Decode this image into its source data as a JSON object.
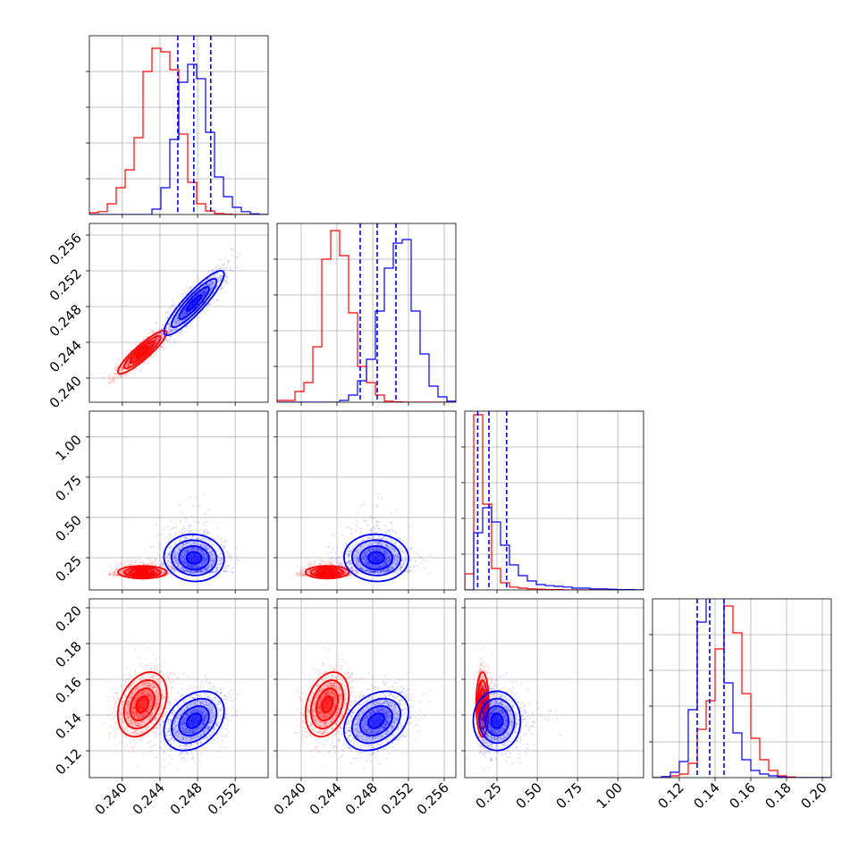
{
  "chart_data": {
    "type": "corner",
    "series_colors": [
      "#ff0000",
      "#0000ff"
    ],
    "dims": [
      {
        "range": [
          0.2365,
          0.2555
        ],
        "ticks": [
          0.24,
          0.244,
          0.248,
          0.252
        ],
        "labels": [
          "0.240",
          "0.244",
          "0.248",
          "0.252"
        ]
      },
      {
        "range": [
          0.2373,
          0.2573
        ],
        "ticks": [
          0.24,
          0.244,
          0.248,
          0.252,
          0.256
        ],
        "labels": [
          "0.240",
          "0.244",
          "0.248",
          "0.252",
          "0.256"
        ]
      },
      {
        "range": [
          0.05,
          1.16
        ],
        "ticks": [
          0.25,
          0.5,
          0.75,
          1.0
        ],
        "labels": [
          "0.25",
          "0.50",
          "0.75",
          "1.00"
        ]
      },
      {
        "range": [
          0.105,
          0.205
        ],
        "ticks": [
          0.12,
          0.14,
          0.16,
          0.18,
          0.2
        ],
        "labels": [
          "0.12",
          "0.14",
          "0.16",
          "0.18",
          "0.20"
        ]
      }
    ],
    "hist": [
      {
        "red": [
          0.5,
          0.8,
          3.0,
          7.5,
          12.5,
          21.5,
          40.0,
          46.5,
          45.5,
          40.5,
          22.5,
          9.0,
          3.0,
          1.0,
          0.3,
          0.1,
          0.0,
          0.0,
          0.0,
          0.0
        ],
        "blue": [
          0.0,
          0.0,
          0.0,
          0.0,
          0.0,
          0.0,
          0.0,
          1.5,
          7.5,
          21.0,
          37.0,
          42.0,
          38.0,
          23.0,
          10.5,
          5.0,
          2.0,
          0.8,
          0.2,
          0.0
        ],
        "quantiles": [
          0.2459,
          0.2476,
          0.2494
        ]
      },
      {
        "red": [
          0.5,
          0.5,
          3.0,
          5.5,
          15.5,
          40.0,
          48.0,
          41.0,
          25.0,
          10.0,
          5.5,
          2.0,
          0.3,
          0.1,
          0.0,
          0.0,
          0.0,
          0.0,
          0.0,
          0.0
        ],
        "blue": [
          0.0,
          0.0,
          0.0,
          0.0,
          0.0,
          0.0,
          0.0,
          0.5,
          2.0,
          6.0,
          12.0,
          25.5,
          37.5,
          44.5,
          45.5,
          25.5,
          13.5,
          4.5,
          1.5,
          0.3
        ],
        "quantiles": [
          0.2466,
          0.2485,
          0.2506
        ]
      },
      {
        "red": [
          4.5,
          49.0,
          24.0,
          6.0,
          2.0,
          0.8,
          0.5,
          0.3,
          0.2,
          0.1,
          0.1,
          0.0,
          0.0,
          0.0,
          0.0,
          0.0,
          0.0,
          0.0,
          0.0,
          0.0
        ],
        "blue": [
          0.0,
          16.0,
          23.0,
          19.0,
          12.5,
          7.0,
          4.0,
          2.5,
          1.5,
          1.2,
          1.0,
          0.8,
          0.5,
          0.5,
          0.3,
          0.3,
          0.2,
          0.1,
          0.1,
          0.0
        ],
        "quantiles": [
          0.13,
          0.2,
          0.31
        ]
      },
      {
        "red": [
          0.0,
          0.0,
          0.5,
          1.0,
          4.0,
          13.5,
          21.5,
          36.0,
          48.0,
          40.5,
          23.5,
          11.0,
          5.0,
          2.0,
          0.5,
          0.2,
          0.0,
          0.0,
          0.0,
          0.0
        ],
        "blue": [
          0.0,
          0.3,
          1.5,
          4.5,
          19.0,
          43.5,
          54.0,
          53.0,
          26.5,
          12.5,
          5.0,
          2.0,
          1.0,
          0.5,
          0.2,
          0.0,
          0.0,
          0.0,
          0.0,
          0.0
        ],
        "quantiles": [
          0.13,
          0.137,
          0.145
        ]
      }
    ],
    "scatter": {
      "red": {
        "mean": [
          0.2421,
          0.2429,
          0.15,
          0.146
        ],
        "std": [
          0.0013,
          0.0012,
          0.025,
          0.009
        ]
      },
      "blue": {
        "mean": [
          0.2477,
          0.2485,
          0.21,
          0.137
        ],
        "std": [
          0.0016,
          0.0018,
          0.09,
          0.008
        ]
      }
    }
  }
}
